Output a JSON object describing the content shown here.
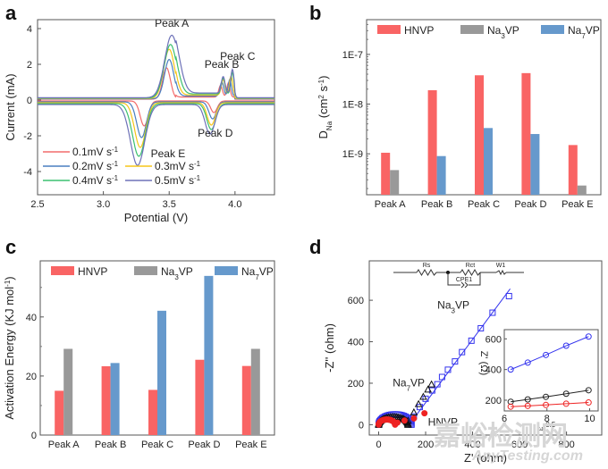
{
  "panels": {
    "a": {
      "label": "a"
    },
    "b": {
      "label": "b"
    },
    "c": {
      "label": "c"
    },
    "d": {
      "label": "d"
    }
  },
  "watermark": {
    "cn": "嘉峪检测网",
    "en": "AnyTesting.com"
  },
  "chart_data": [
    {
      "id": "a",
      "type": "line",
      "title": "",
      "xlabel": "Potential (V)",
      "ylabel": "Current (mA)",
      "xlim": [
        2.5,
        4.3
      ],
      "ylim": [
        -5.3,
        4.5
      ],
      "xticks": [
        2.5,
        3.0,
        3.5,
        4.0
      ],
      "yticks": [
        4,
        2,
        0,
        -2,
        -4
      ],
      "legend_position": "bottom-left",
      "annotations": [
        "Peak A",
        "Peak B",
        "Peak C",
        "Peak D",
        "Peak E"
      ],
      "series": [
        {
          "name": "0.1mV s-1",
          "scan_rate": 0.1,
          "color": "#f26b6b",
          "peakA": [
            3.48,
            1.75
          ],
          "peakB": [
            3.89,
            0.7
          ],
          "peakC": [
            3.95,
            0.85
          ],
          "peakD": [
            3.84,
            -0.65
          ],
          "peakE": [
            3.31,
            -1.4
          ]
        },
        {
          "name": "0.2mV s-1",
          "scan_rate": 0.2,
          "color": "#4a7fc0",
          "peakA": [
            3.5,
            2.2
          ],
          "peakB": [
            3.9,
            0.85
          ],
          "peakC": [
            3.96,
            1.0
          ],
          "peakD": [
            3.83,
            -0.95
          ],
          "peakE": [
            3.29,
            -2.0
          ]
        },
        {
          "name": "0.3mV s-1",
          "scan_rate": 0.3,
          "color": "#f5c518",
          "peakA": [
            3.5,
            2.75
          ],
          "peakB": [
            3.91,
            0.95
          ],
          "peakC": [
            3.97,
            1.15
          ],
          "peakD": [
            3.82,
            -1.25
          ],
          "peakE": [
            3.28,
            -2.5
          ]
        },
        {
          "name": "0.4mV s-1",
          "scan_rate": 0.4,
          "color": "#3cc070",
          "peakA": [
            3.51,
            3.0
          ],
          "peakB": [
            3.91,
            1.0
          ],
          "peakC": [
            3.98,
            1.3
          ],
          "peakD": [
            3.82,
            -1.45
          ],
          "peakE": [
            3.27,
            -2.95
          ]
        },
        {
          "name": "0.5mV s-1",
          "scan_rate": 0.5,
          "color": "#6e72b8",
          "peakA": [
            3.52,
            3.5
          ],
          "peakB": [
            3.91,
            1.05
          ],
          "peakC": [
            3.98,
            1.45
          ],
          "peakD": [
            3.81,
            -1.65
          ],
          "peakE": [
            3.26,
            -3.4
          ]
        }
      ]
    },
    {
      "id": "b",
      "type": "bar",
      "title": "",
      "xlabel": "",
      "ylabel": "D_Na (cm2 s-1)",
      "ylabel_parts": {
        "main": "D",
        "sub": "Na",
        "unit_pre": " (cm",
        "sup1": "2",
        "mid": " s",
        "sup2": "-1",
        "end": ")"
      },
      "yscale": "log",
      "ylim": [
        1.5e-10,
        5e-07
      ],
      "yticks": [
        {
          "v": 1e-07,
          "label": "1E-7"
        },
        {
          "v": 1e-08,
          "label": "1E-8"
        },
        {
          "v": 1e-09,
          "label": "1E-9"
        }
      ],
      "legend_position": "top",
      "categories": [
        "Peak A",
        "Peak B",
        "Peak C",
        "Peak D",
        "Peak E"
      ],
      "series": [
        {
          "name": "HNVP",
          "sub": "",
          "color": "#f96464",
          "values": [
            1.05e-09,
            1.9e-08,
            3.8e-08,
            4.2e-08,
            1.5e-09
          ]
        },
        {
          "name": "Na3VP",
          "sub": "3",
          "color": "#999999",
          "values": [
            4.7e-10,
            null,
            null,
            null,
            2.3e-10
          ]
        },
        {
          "name": "Na7VP",
          "sub": "7",
          "color": "#6699cc",
          "values": [
            null,
            9e-10,
            3.3e-09,
            2.5e-09,
            null
          ]
        }
      ]
    },
    {
      "id": "c",
      "type": "bar",
      "title": "",
      "xlabel": "",
      "ylabel": "Activation Energy (KJ mol-1)",
      "ylabel_parts": {
        "main": "Activation Energy (KJ mol",
        "sup": "-1",
        "end": ")"
      },
      "ylim": [
        0,
        59
      ],
      "yticks": [
        0,
        20,
        40
      ],
      "legend_position": "top",
      "categories": [
        "Peak A",
        "Peak B",
        "Peak C",
        "Peak D",
        "Peak E"
      ],
      "series": [
        {
          "name": "HNVP",
          "sub": "",
          "color": "#f96464",
          "values": [
            15.0,
            23.3,
            15.3,
            25.5,
            23.4
          ]
        },
        {
          "name": "Na3VP",
          "sub": "3",
          "color": "#999999",
          "values": [
            29.2,
            null,
            null,
            null,
            29.2
          ]
        },
        {
          "name": "Na7VP",
          "sub": "7",
          "color": "#6699cc",
          "values": [
            null,
            24.4,
            42.1,
            53.9,
            null
          ]
        }
      ]
    },
    {
      "id": "d",
      "type": "scatter",
      "title": "",
      "xlabel": "Z' (ohm)",
      "ylabel": "-Z'' (ohm)",
      "xlim": [
        -40,
        950
      ],
      "ylim": [
        -50,
        790
      ],
      "xticks": [
        0,
        200,
        400,
        600,
        800
      ],
      "yticks": [
        0,
        200,
        400,
        600
      ],
      "annotations": [
        "Na3VP",
        "Na7VP",
        "HNVP"
      ],
      "circuit_labels": [
        "Rs",
        "Rct",
        "W1",
        "CPE1"
      ],
      "series": [
        {
          "name": "Na3VP",
          "color": "#3333ee",
          "marker": "square",
          "semicircle": {
            "start": 0,
            "end": 140,
            "height": 50
          },
          "tail": [
            [
              150,
              40
            ],
            [
              175,
              85
            ],
            [
              200,
              125
            ],
            [
              228,
              165
            ],
            [
              250,
              195
            ],
            [
              270,
              230
            ],
            [
              295,
              265
            ],
            [
              325,
              305
            ],
            [
              355,
              350
            ],
            [
              395,
              405
            ],
            [
              435,
              465
            ],
            [
              485,
              540
            ],
            [
              555,
              620
            ]
          ],
          "fit_line": [
            [
              130,
              0
            ],
            [
              560,
              655
            ]
          ]
        },
        {
          "name": "Na7VP",
          "color": "#111111",
          "marker": "triangle",
          "semicircle": {
            "start": 0,
            "end": 125,
            "height": 38
          },
          "tail": [
            [
              125,
              20
            ],
            [
              150,
              60
            ],
            [
              170,
              100
            ],
            [
              190,
              135
            ],
            [
              210,
              170
            ],
            [
              225,
              195
            ]
          ]
        },
        {
          "name": "HNVP",
          "color": "#ee2222",
          "marker": "circle",
          "semicircle": {
            "start": 0,
            "end": 70,
            "height": 25
          },
          "tail": [
            [
              80,
              10
            ],
            [
              110,
              20
            ],
            [
              150,
              30
            ],
            [
              195,
              55
            ]
          ]
        }
      ],
      "inset": {
        "xlabel": "ω-0.5",
        "ylabel": "Z' (Ω)",
        "xlim": [
          6,
          10.4
        ],
        "ylim": [
          130,
          660
        ],
        "xticks": [
          6,
          8,
          10
        ],
        "yticks": [
          200,
          400,
          600
        ],
        "x": [
          6.3,
          7.1,
          7.95,
          8.9,
          9.95
        ],
        "series": [
          {
            "name": "Na3VP",
            "color": "#3333ee",
            "values": [
              400,
              445,
              495,
              555,
              615
            ]
          },
          {
            "name": "Na7VP",
            "color": "#222222",
            "values": [
              190,
              205,
              222,
              242,
              265
            ]
          },
          {
            "name": "HNVP",
            "color": "#ee2222",
            "values": [
              158,
              163,
              169,
              177,
              185
            ]
          }
        ]
      }
    }
  ]
}
